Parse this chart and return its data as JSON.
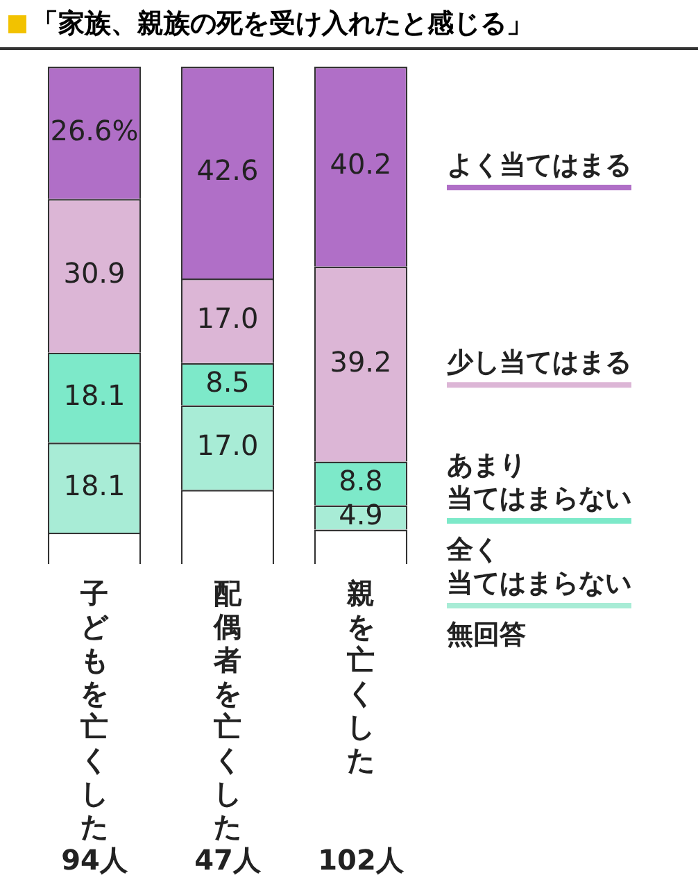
{
  "chart_data": {
    "type": "bar",
    "title": "「家族、親族の死を受け入れたと感じる」",
    "categories": [
      "子どもを亡くした 94人",
      "配偶者を亡くした 47人",
      "親を亡くした 102人"
    ],
    "stacked": true,
    "ylim": [
      0,
      100
    ],
    "tick_labels": "x",
    "grid": false,
    "series": [
      {
        "name": "無回答",
        "color": "#ffffff",
        "values": [
          6.3,
          14.9,
          6.9
        ],
        "value_labels": [
          null,
          null,
          null
        ]
      },
      {
        "name": "全く当てはまらない",
        "color": "#a8ecd6",
        "values": [
          18.1,
          17.0,
          4.9
        ],
        "value_labels": [
          "18.1",
          "17.0",
          "4.9"
        ]
      },
      {
        "name": "あまり当てはまらない",
        "color": "#7de9c9",
        "values": [
          18.1,
          8.5,
          8.8
        ],
        "value_labels": [
          "18.1",
          "8.5",
          "8.8"
        ]
      },
      {
        "name": "少し当てはまる",
        "color": "#dcb6d6",
        "values": [
          30.9,
          17.0,
          39.2
        ],
        "value_labels": [
          "30.9",
          "17.0",
          "39.2"
        ]
      },
      {
        "name": "よく当てはまる",
        "color": "#b06fc7",
        "values": [
          26.6,
          42.6,
          40.2
        ],
        "value_labels": [
          "26.6%",
          "42.6",
          "40.2"
        ]
      }
    ]
  }
}
